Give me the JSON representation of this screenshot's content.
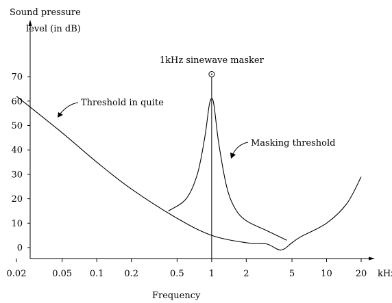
{
  "chart_data": {
    "type": "line",
    "title": "",
    "ylabel_line1": "Sound pressure",
    "ylabel_line2": "level (in dB)",
    "xlabel": "Frequency",
    "x_unit": "kHz",
    "x_scale": "log",
    "xlim": [
      0.02,
      20
    ],
    "ylim": [
      -3,
      72
    ],
    "x_ticks": [
      0.02,
      0.05,
      0.1,
      0.2,
      0.5,
      1,
      2,
      5,
      10,
      20
    ],
    "x_tick_labels": [
      "0.02",
      "0.05",
      "0.1",
      "0.2",
      "0.5",
      "1",
      "2",
      "5",
      "10",
      "20"
    ],
    "y_ticks": [
      0,
      10,
      20,
      30,
      40,
      50,
      60,
      70
    ],
    "y_tick_labels": [
      "0",
      "10",
      "20",
      "30",
      "40",
      "50",
      "60",
      "70"
    ],
    "grid": false,
    "legend": "none",
    "series": [
      {
        "name": "Threshold in quite",
        "points": [
          [
            0.02,
            62
          ],
          [
            0.05,
            47
          ],
          [
            0.1,
            35
          ],
          [
            0.2,
            24
          ],
          [
            0.5,
            12
          ],
          [
            1,
            5
          ],
          [
            2,
            2
          ],
          [
            3,
            1.5
          ],
          [
            4,
            -1
          ],
          [
            5,
            2
          ],
          [
            6,
            4.5
          ],
          [
            10,
            10
          ],
          [
            15,
            18
          ],
          [
            20,
            29
          ]
        ]
      },
      {
        "name": "Masking threshold",
        "points": [
          [
            0.42,
            15
          ],
          [
            0.6,
            20
          ],
          [
            0.75,
            30
          ],
          [
            0.87,
            45
          ],
          [
            0.95,
            58
          ],
          [
            1,
            61
          ],
          [
            1.05,
            58
          ],
          [
            1.15,
            43
          ],
          [
            1.35,
            25
          ],
          [
            1.6,
            16
          ],
          [
            2,
            11
          ],
          [
            3,
            7
          ],
          [
            4.5,
            3
          ]
        ]
      }
    ],
    "masker": {
      "label": "1kHz sinewave masker",
      "x": 1,
      "y": 71
    },
    "annotations": [
      {
        "text": "Threshold in quite",
        "target": "Threshold in quite"
      },
      {
        "text": "Masking threshold",
        "target": "Masking threshold"
      }
    ]
  }
}
